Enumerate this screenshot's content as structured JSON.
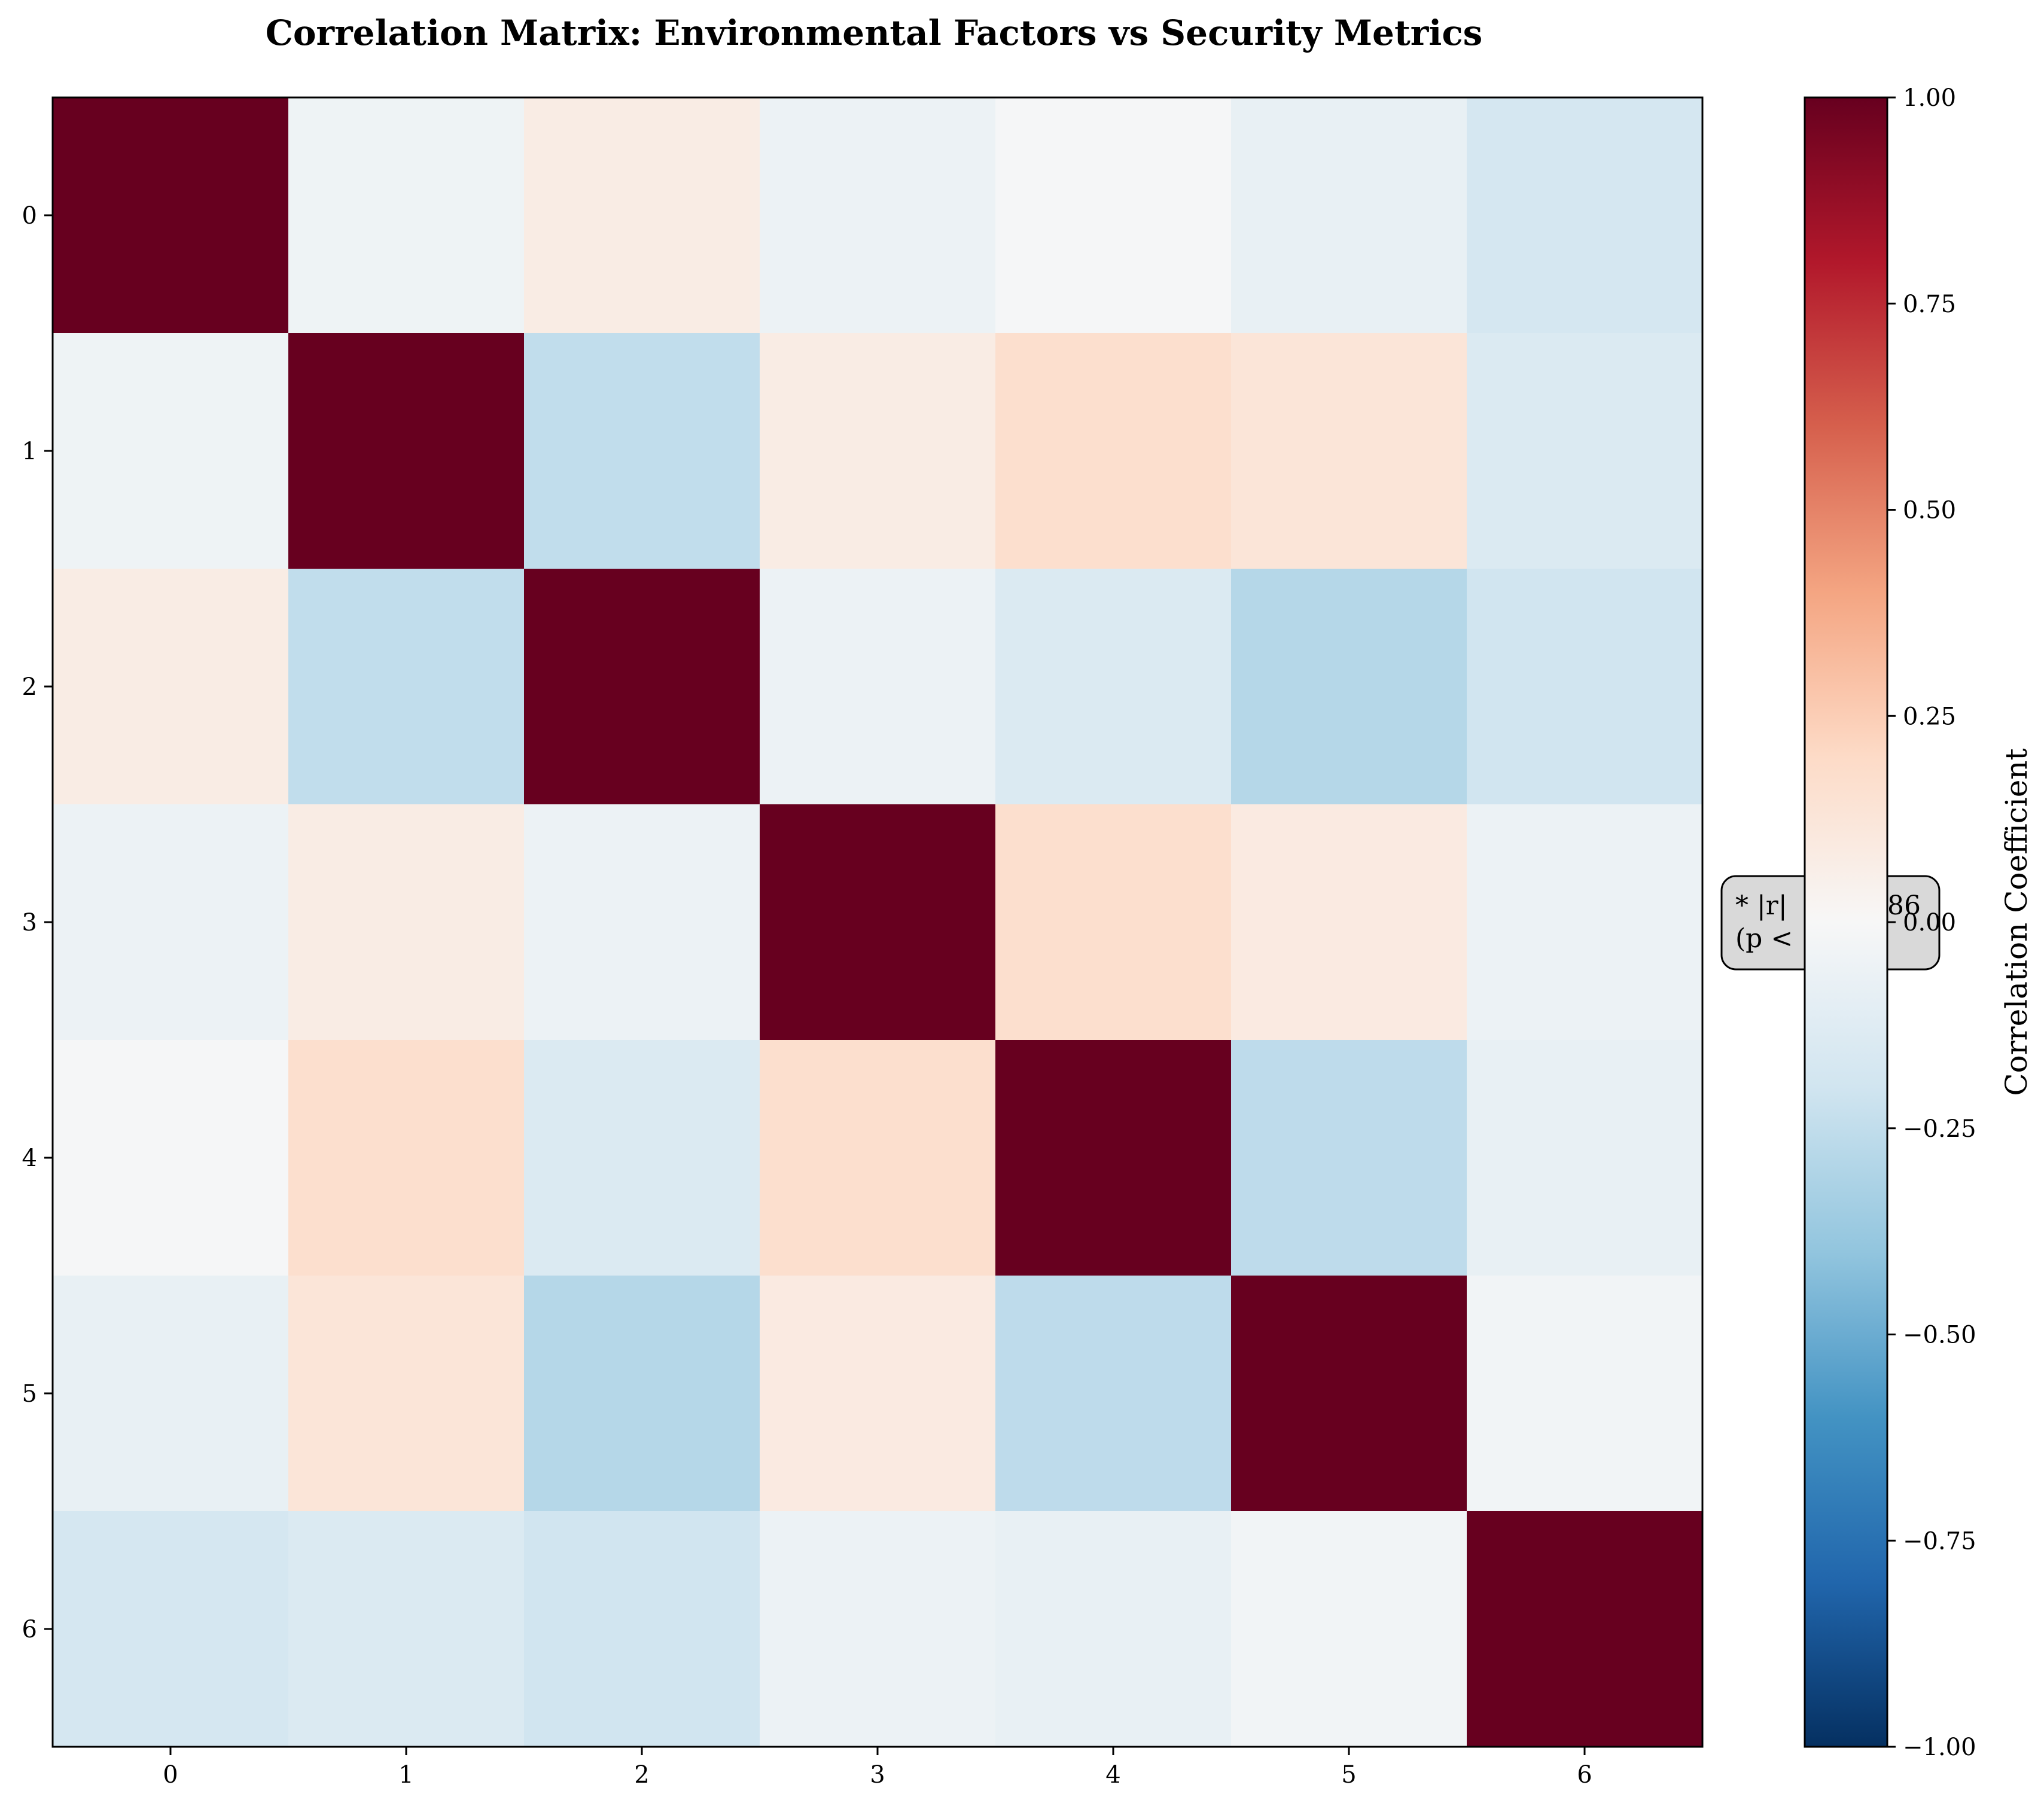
{
  "chart_data": {
    "type": "heatmap",
    "title": "Correlation Matrix: Environmental Factors vs Security Metrics",
    "x_categories": [
      "0",
      "1",
      "2",
      "3",
      "4",
      "5",
      "6"
    ],
    "y_categories": [
      "0",
      "1",
      "2",
      "3",
      "4",
      "5",
      "6"
    ],
    "values": [
      [
        1.0,
        -0.05,
        0.08,
        -0.06,
        -0.01,
        -0.08,
        -0.18
      ],
      [
        -0.05,
        1.0,
        -0.25,
        0.08,
        0.17,
        0.13,
        -0.15
      ],
      [
        0.08,
        -0.25,
        1.0,
        -0.06,
        -0.15,
        -0.29,
        -0.2
      ],
      [
        -0.06,
        0.08,
        -0.06,
        1.0,
        0.17,
        0.09,
        -0.06
      ],
      [
        -0.01,
        0.17,
        -0.15,
        0.17,
        1.0,
        -0.26,
        -0.08
      ],
      [
        -0.08,
        0.13,
        -0.29,
        0.09,
        -0.26,
        1.0,
        -0.03
      ],
      [
        -0.18,
        -0.15,
        -0.2,
        -0.06,
        -0.08,
        -0.03,
        1.0
      ]
    ],
    "colormap": "RdBu_r",
    "vmin": -1.0,
    "vmax": 1.0,
    "colorbar": {
      "label": "Correlation Coefficient",
      "ticks": [
        1.0,
        0.75,
        0.5,
        0.25,
        0.0,
        -0.25,
        -0.5,
        -0.75,
        -1.0
      ],
      "tick_labels": [
        "1.00",
        "0.75",
        "0.50",
        "0.25",
        "0.00",
        "−0.25",
        "−0.50",
        "−0.75",
        "−1.00"
      ]
    },
    "annotation": {
      "line1_left": "* |r|",
      "line1_right": "86",
      "line2_left": "(p <"
    },
    "grid": false
  },
  "colors": {
    "background": "#ffffff",
    "note_box_fill": "#d9d9d9",
    "axis": "#000000"
  }
}
